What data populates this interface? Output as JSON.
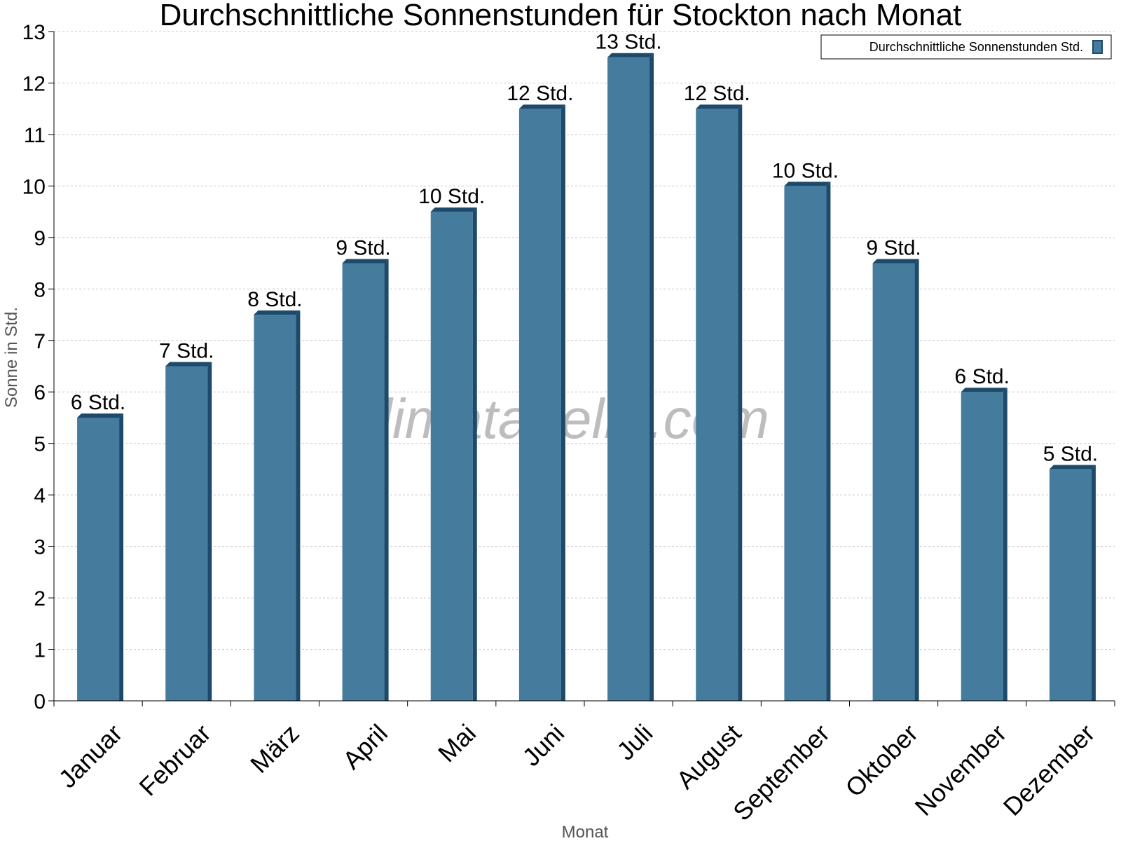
{
  "chart_data": {
    "type": "bar",
    "title": "Durchschnittliche Sonnenstunden für Stockton nach Monat",
    "xlabel": "Monat",
    "ylabel": "Sonne in Std.",
    "ylim": [
      0,
      13
    ],
    "yticks": [
      0,
      1,
      2,
      3,
      4,
      5,
      6,
      7,
      8,
      9,
      10,
      11,
      12,
      13
    ],
    "grid": true,
    "legend_position": "top-right",
    "categories": [
      "Januar",
      "Februar",
      "März",
      "April",
      "Mai",
      "Juni",
      "Juli",
      "August",
      "September",
      "Oktober",
      "November",
      "Dezember"
    ],
    "series": [
      {
        "name": "Durchschnittliche Sonnenstunden Std.",
        "values": [
          5.5,
          6.5,
          7.5,
          8.5,
          9.5,
          11.5,
          12.5,
          11.5,
          10,
          8.5,
          6,
          4.5
        ],
        "labels": [
          "6 Std.",
          "7 Std.",
          "8 Std.",
          "9 Std.",
          "10 Std.",
          "12 Std.",
          "13 Std.",
          "12 Std.",
          "10 Std.",
          "9 Std.",
          "6 Std.",
          "5 Std."
        ],
        "color": "#457b9d",
        "edge_color": "#1d4a6b"
      }
    ],
    "watermark": "klimatabelle.com"
  }
}
